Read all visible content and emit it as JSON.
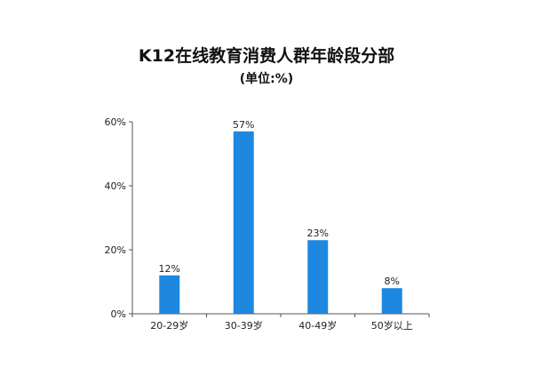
{
  "chart_data": {
    "type": "bar",
    "title": "K12在线教育消费人群年龄段分部",
    "subtitle": "(单位:%)",
    "categories": [
      "20-29岁",
      "30-39岁",
      "40-49岁",
      "50岁以上"
    ],
    "values": [
      12,
      57,
      23,
      8
    ],
    "data_labels": [
      "12%",
      "57%",
      "23%",
      "8%"
    ],
    "ylim": [
      0,
      60
    ],
    "yticks": [
      "0%",
      "20%",
      "40%",
      "60%"
    ],
    "ytick_values": [
      0,
      20,
      40,
      60
    ],
    "grid": false,
    "bar_color": "#1e88e0"
  }
}
